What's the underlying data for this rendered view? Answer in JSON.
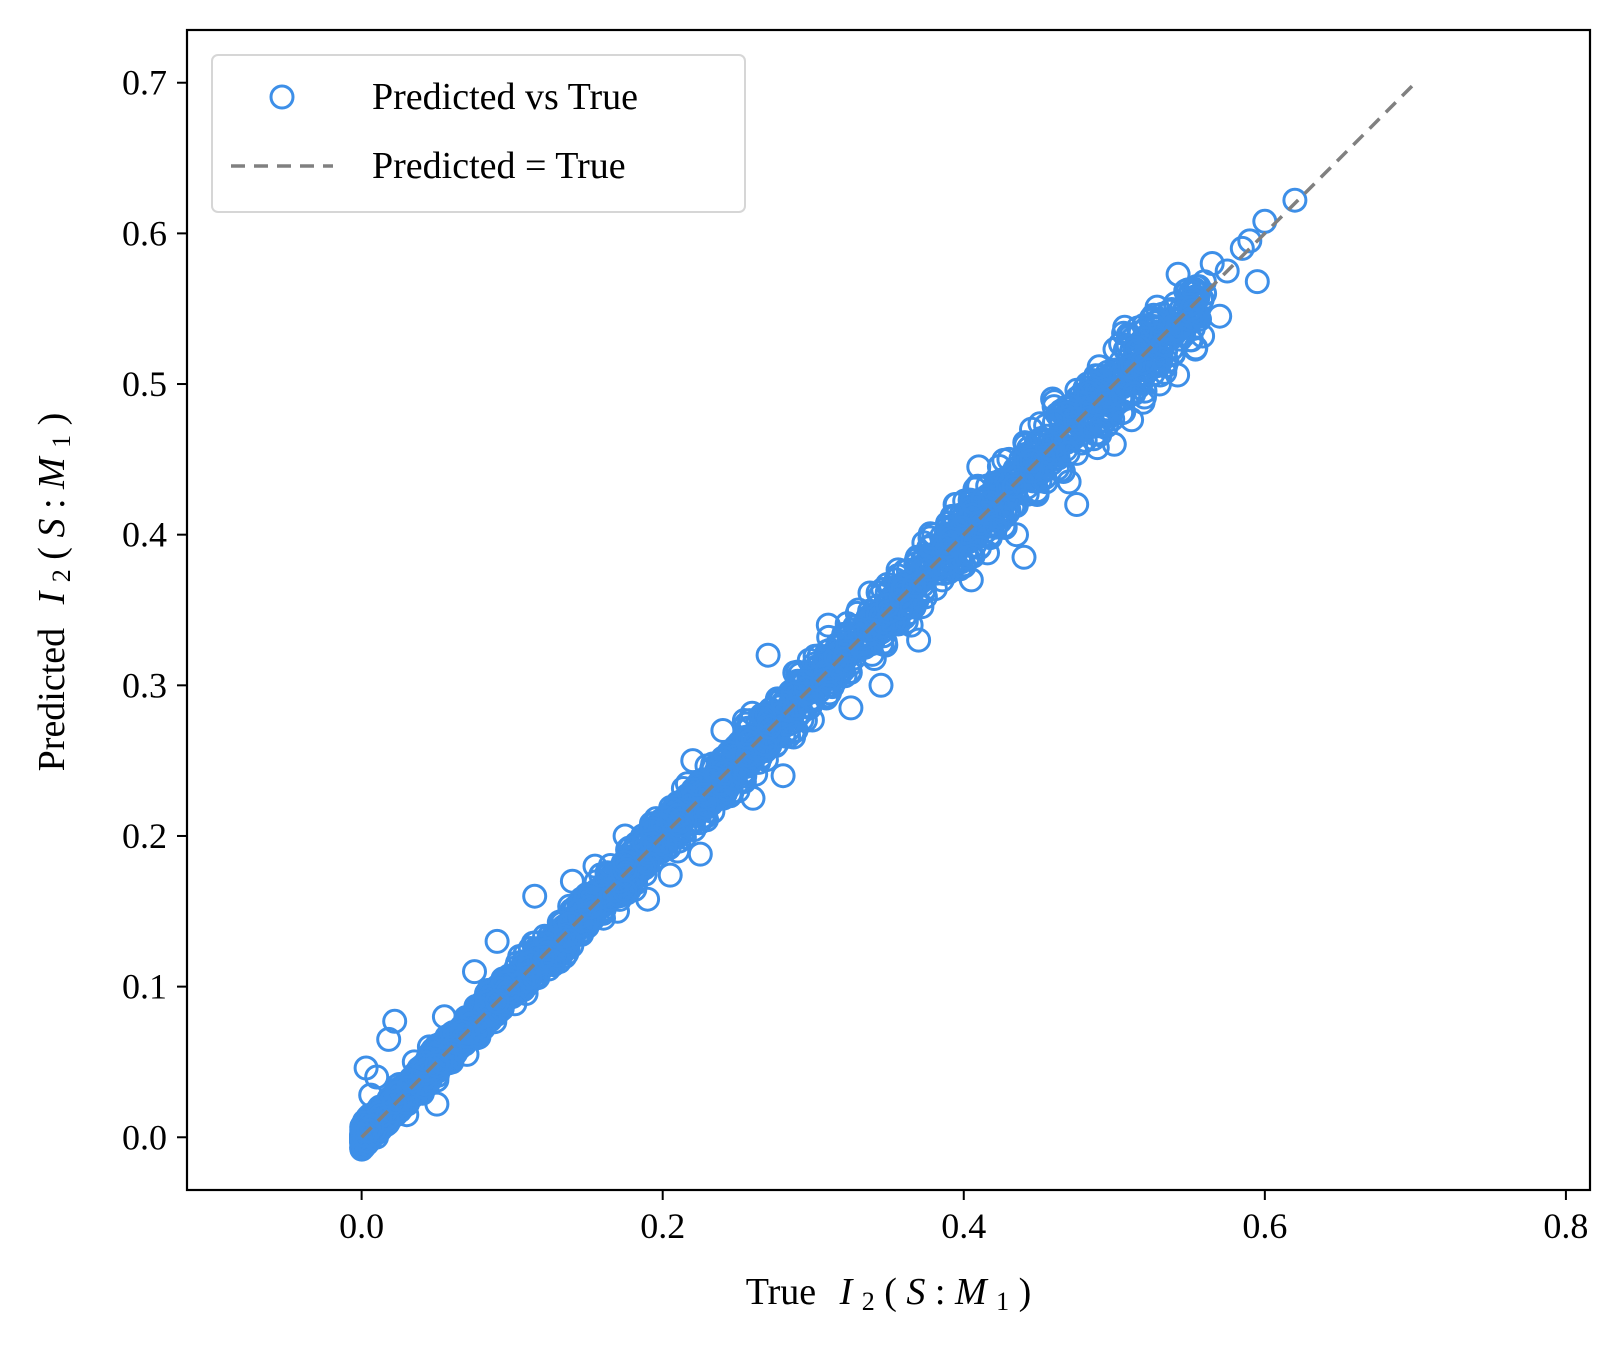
{
  "chart_data": {
    "type": "scatter",
    "xlabel_prefix": "True",
    "ylabel_prefix": "Predicted",
    "label_math": {
      "I": "I",
      "sub": "2",
      "open": "(",
      "S": "S",
      "colon": ":",
      "M": "M",
      "msub": "1",
      "close": ")"
    },
    "xlim": [
      -0.116,
      0.816
    ],
    "ylim": [
      -0.035,
      0.735
    ],
    "xticks": [
      0.0,
      0.2,
      0.4,
      0.6,
      0.8
    ],
    "xtick_labels": [
      "0.0",
      "0.2",
      "0.4",
      "0.6",
      "0.8"
    ],
    "yticks": [
      0.0,
      0.1,
      0.2,
      0.3,
      0.4,
      0.5,
      0.6,
      0.7
    ],
    "ytick_labels": [
      "0.0",
      "0.1",
      "0.2",
      "0.3",
      "0.4",
      "0.5",
      "0.6",
      "0.7"
    ],
    "grid": false,
    "legend_position": "top-left",
    "series": [
      {
        "name": "Predicted vs True",
        "marker": "open-circle",
        "color": "#3d8fe8",
        "points": [
          [
            0.0,
            0.002
          ],
          [
            0.003,
            0.046
          ],
          [
            0.006,
            0.028
          ],
          [
            0.01,
            0.04
          ],
          [
            0.012,
            0.02
          ],
          [
            0.015,
            0.008
          ],
          [
            0.018,
            0.065
          ],
          [
            0.022,
            0.077
          ],
          [
            0.025,
            0.035
          ],
          [
            0.03,
            0.015
          ],
          [
            0.035,
            0.05
          ],
          [
            0.04,
            0.03
          ],
          [
            0.045,
            0.06
          ],
          [
            0.05,
            0.038
          ],
          [
            0.05,
            0.022
          ],
          [
            0.055,
            0.08
          ],
          [
            0.06,
            0.05
          ],
          [
            0.065,
            0.07
          ],
          [
            0.07,
            0.055
          ],
          [
            0.075,
            0.11
          ],
          [
            0.08,
            0.075
          ],
          [
            0.085,
            0.09
          ],
          [
            0.09,
            0.13
          ],
          [
            0.1,
            0.095
          ],
          [
            0.105,
            0.12
          ],
          [
            0.11,
            0.105
          ],
          [
            0.115,
            0.16
          ],
          [
            0.12,
            0.115
          ],
          [
            0.13,
            0.135
          ],
          [
            0.135,
            0.12
          ],
          [
            0.14,
            0.17
          ],
          [
            0.15,
            0.14
          ],
          [
            0.155,
            0.18
          ],
          [
            0.16,
            0.16
          ],
          [
            0.17,
            0.15
          ],
          [
            0.175,
            0.2
          ],
          [
            0.18,
            0.17
          ],
          [
            0.19,
            0.158
          ],
          [
            0.2,
            0.21
          ],
          [
            0.205,
            0.174
          ],
          [
            0.21,
            0.19
          ],
          [
            0.22,
            0.25
          ],
          [
            0.225,
            0.188
          ],
          [
            0.23,
            0.22
          ],
          [
            0.24,
            0.27
          ],
          [
            0.25,
            0.23
          ],
          [
            0.26,
            0.225
          ],
          [
            0.27,
            0.32
          ],
          [
            0.275,
            0.26
          ],
          [
            0.28,
            0.24
          ],
          [
            0.29,
            0.3
          ],
          [
            0.3,
            0.29
          ],
          [
            0.31,
            0.34
          ],
          [
            0.32,
            0.31
          ],
          [
            0.325,
            0.285
          ],
          [
            0.33,
            0.35
          ],
          [
            0.34,
            0.33
          ],
          [
            0.345,
            0.3
          ],
          [
            0.355,
            0.37
          ],
          [
            0.36,
            0.35
          ],
          [
            0.365,
            0.34
          ],
          [
            0.37,
            0.33
          ],
          [
            0.38,
            0.4
          ],
          [
            0.39,
            0.375
          ],
          [
            0.395,
            0.42
          ],
          [
            0.4,
            0.38
          ],
          [
            0.405,
            0.37
          ],
          [
            0.41,
            0.445
          ],
          [
            0.42,
            0.43
          ],
          [
            0.43,
            0.45
          ],
          [
            0.435,
            0.4
          ],
          [
            0.44,
            0.385
          ],
          [
            0.445,
            0.47
          ],
          [
            0.45,
            0.44
          ],
          [
            0.46,
            0.485
          ],
          [
            0.465,
            0.46
          ],
          [
            0.47,
            0.435
          ],
          [
            0.475,
            0.42
          ],
          [
            0.48,
            0.49
          ],
          [
            0.49,
            0.475
          ],
          [
            0.5,
            0.46
          ],
          [
            0.505,
            0.51
          ],
          [
            0.51,
            0.5
          ],
          [
            0.52,
            0.525
          ],
          [
            0.53,
            0.5
          ],
          [
            0.535,
            0.515
          ],
          [
            0.54,
            0.54
          ],
          [
            0.55,
            0.545
          ],
          [
            0.56,
            0.56
          ],
          [
            0.565,
            0.58
          ],
          [
            0.57,
            0.545
          ],
          [
            0.575,
            0.575
          ],
          [
            0.585,
            0.59
          ],
          [
            0.59,
            0.595
          ],
          [
            0.595,
            0.568
          ],
          [
            0.6,
            0.608
          ],
          [
            0.62,
            0.622
          ]
        ]
      },
      {
        "name": "Predicted = True",
        "line_style": "dashed",
        "color": "#808080",
        "x": [
          0.0,
          0.7
        ],
        "y": [
          0.0,
          0.7
        ]
      }
    ]
  }
}
